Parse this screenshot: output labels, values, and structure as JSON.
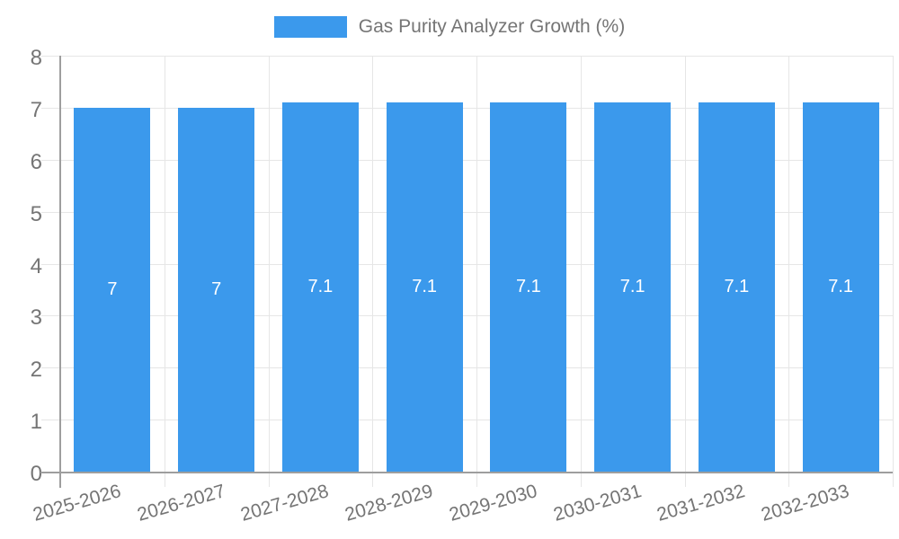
{
  "legend": {
    "label": "Gas Purity Analyzer Growth (%)"
  },
  "chart_data": {
    "type": "bar",
    "title": "Gas Purity Analyzer Growth (%)",
    "categories": [
      "2025-2026",
      "2026-2027",
      "2027-2028",
      "2028-2029",
      "2029-2030",
      "2030-2031",
      "2031-2032",
      "2032-2033"
    ],
    "values": [
      7,
      7,
      7.1,
      7.1,
      7.1,
      7.1,
      7.1,
      7.1
    ],
    "bar_labels": [
      "7",
      "7",
      "7.1",
      "7.1",
      "7.1",
      "7.1",
      "7.1",
      "7.1"
    ],
    "xlabel": "",
    "ylabel": "",
    "ylim": [
      0,
      8
    ],
    "yticks": [
      0,
      1,
      2,
      3,
      4,
      5,
      6,
      7,
      8
    ],
    "grid": true,
    "legend_position": "top",
    "colors": {
      "bar": "#3b99ec",
      "bar_label": "#ffffff",
      "axis_text": "#757575",
      "axis_line": "#9e9e9e",
      "gridline": "#e6e6e6",
      "background": "#ffffff"
    }
  }
}
